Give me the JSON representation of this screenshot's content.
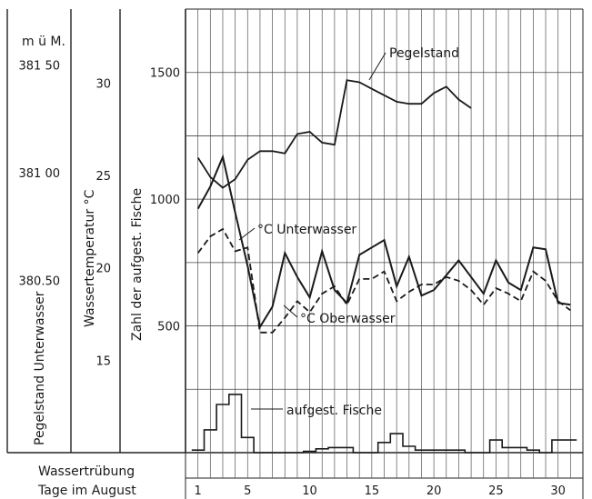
{
  "chart_data": {
    "type": "line",
    "axes": {
      "stage": {
        "title": "Pegelstand Unterwasser",
        "unit": "m ü M.",
        "ticks": [
          "381 50",
          "381 00",
          "380.50"
        ],
        "tick_values": [
          381.5,
          381.0,
          380.5
        ],
        "range": [
          379.7,
          381.76
        ]
      },
      "temp": {
        "title": "Wassertemperatur °C",
        "ticks": [
          "30",
          "25",
          "20",
          "15"
        ],
        "tick_values": [
          30,
          25,
          20,
          15
        ],
        "range": [
          10.0,
          34.0
        ]
      },
      "fish": {
        "title": "Zahl der aufgest. Fische",
        "ticks": [
          "1500",
          "1000",
          "500"
        ],
        "tick_values": [
          1500,
          1000,
          500
        ],
        "range": [
          0,
          1750
        ]
      },
      "x": {
        "title": "Tage im August",
        "ticks": [
          "1",
          "5",
          "10",
          "15",
          "20",
          "25",
          "30"
        ],
        "tick_values": [
          1,
          5,
          10,
          15,
          20,
          25,
          30
        ],
        "range": [
          0,
          32
        ]
      },
      "turbidity_label": "Wassertrübung"
    },
    "series": [
      {
        "name": "Pegelstand",
        "axis": "stage",
        "x": [
          1,
          2,
          3,
          4,
          5,
          6,
          7,
          8,
          9,
          10,
          11,
          12,
          13,
          14,
          15,
          16,
          17,
          18,
          19,
          20,
          21,
          22,
          23
        ],
        "y": [
          381.07,
          380.98,
          380.93,
          380.97,
          381.06,
          381.1,
          381.1,
          381.09,
          381.18,
          381.19,
          381.14,
          381.13,
          381.43,
          381.42,
          381.39,
          381.36,
          381.33,
          381.32,
          381.32,
          381.37,
          381.4,
          381.34,
          381.3
        ]
      },
      {
        "name": "°C Unterwasser",
        "axis": "temp",
        "x": [
          1,
          2,
          3,
          4,
          5,
          6,
          7,
          8,
          9,
          10,
          11,
          12,
          13,
          14,
          15,
          16,
          17,
          18,
          19,
          20,
          21,
          22,
          23,
          24,
          25,
          26,
          27,
          28,
          29,
          30,
          31
        ],
        "y": [
          23.2,
          24.4,
          26.0,
          23.0,
          20.1,
          16.8,
          17.9,
          20.8,
          19.5,
          18.4,
          20.9,
          18.8,
          18.1,
          20.7,
          21.1,
          21.5,
          19.0,
          20.6,
          18.5,
          18.8,
          19.6,
          20.4,
          19.5,
          18.6,
          20.4,
          19.2,
          18.8,
          21.1,
          21.0,
          18.1,
          18.0
        ]
      },
      {
        "name": "°C Oberwasser",
        "axis": "temp",
        "x": [
          1,
          2,
          3,
          4,
          5,
          6,
          7,
          8,
          9,
          10,
          11,
          12,
          13,
          14,
          15,
          16,
          17,
          18,
          19,
          20,
          21,
          22,
          23,
          24,
          25,
          26,
          27,
          28,
          29,
          30,
          31
        ],
        "y": [
          20.8,
          21.7,
          22.1,
          20.9,
          21.1,
          16.5,
          16.5,
          17.3,
          18.2,
          17.6,
          18.6,
          19.0,
          18.0,
          19.4,
          19.4,
          19.8,
          18.2,
          18.7,
          19.1,
          19.1,
          19.5,
          19.3,
          18.8,
          18.0,
          18.9,
          18.6,
          18.2,
          19.8,
          19.3,
          18.2,
          17.7
        ]
      },
      {
        "name": "aufgest. Fische",
        "axis": "fish",
        "type": "step",
        "x": [
          1,
          2,
          3,
          4,
          5,
          6,
          7,
          8,
          9,
          10,
          11,
          12,
          13,
          14,
          15,
          16,
          17,
          18,
          19,
          20,
          21,
          22,
          23,
          24,
          25,
          26,
          27,
          28,
          29,
          30,
          31
        ],
        "y": [
          10,
          90,
          190,
          230,
          60,
          0,
          0,
          0,
          0,
          5,
          15,
          20,
          20,
          0,
          0,
          40,
          75,
          25,
          10,
          10,
          10,
          10,
          0,
          0,
          50,
          20,
          20,
          10,
          0,
          50,
          50
        ]
      }
    ],
    "grid": true
  }
}
